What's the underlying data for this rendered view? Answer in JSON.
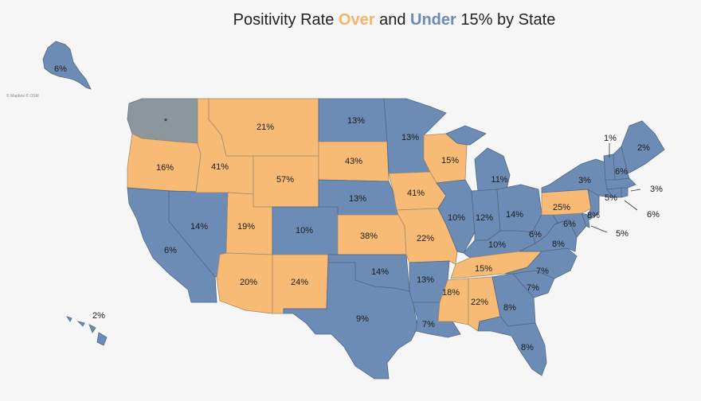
{
  "title": {
    "prefix": "Positivity Rate",
    "over": "Over",
    "middle": "and",
    "under": "Under",
    "suffix": "15% by State"
  },
  "credit": "© Mapbox © OSM",
  "colors": {
    "over": "#f7bb75",
    "under": "#6c8cb5",
    "no_data": "#8c969d"
  },
  "labels": {
    "AK": "6%",
    "HI": "2%",
    "WA": "*",
    "OR": "16%",
    "CA": "6%",
    "NV": "14%",
    "ID": "41%",
    "MT": "21%",
    "WY": "57%",
    "UT": "19%",
    "AZ": "20%",
    "CO": "10%",
    "NM": "24%",
    "ND": "13%",
    "SD": "43%",
    "NE": "13%",
    "KS": "38%",
    "OK": "14%",
    "TX": "9%",
    "MN": "13%",
    "IA": "41%",
    "MO": "22%",
    "AR": "13%",
    "LA": "7%",
    "WI": "15%",
    "IL": "10%",
    "MI": "11%",
    "IN": "12%",
    "OH": "14%",
    "KY": "10%",
    "TN": "15%",
    "MS": "18%",
    "AL": "22%",
    "GA": "8%",
    "FL": "8%",
    "SC": "7%",
    "NC": "7%",
    "VA": "8%",
    "WV": "6%",
    "PA": "25%",
    "NY": "3%",
    "MD": "6%",
    "NJ": "8%",
    "VT": "1%",
    "NH": "6%",
    "ME": "2%",
    "MA": "5%",
    "CT": "6%",
    "RI": "3%",
    "DE": "5%"
  }
}
